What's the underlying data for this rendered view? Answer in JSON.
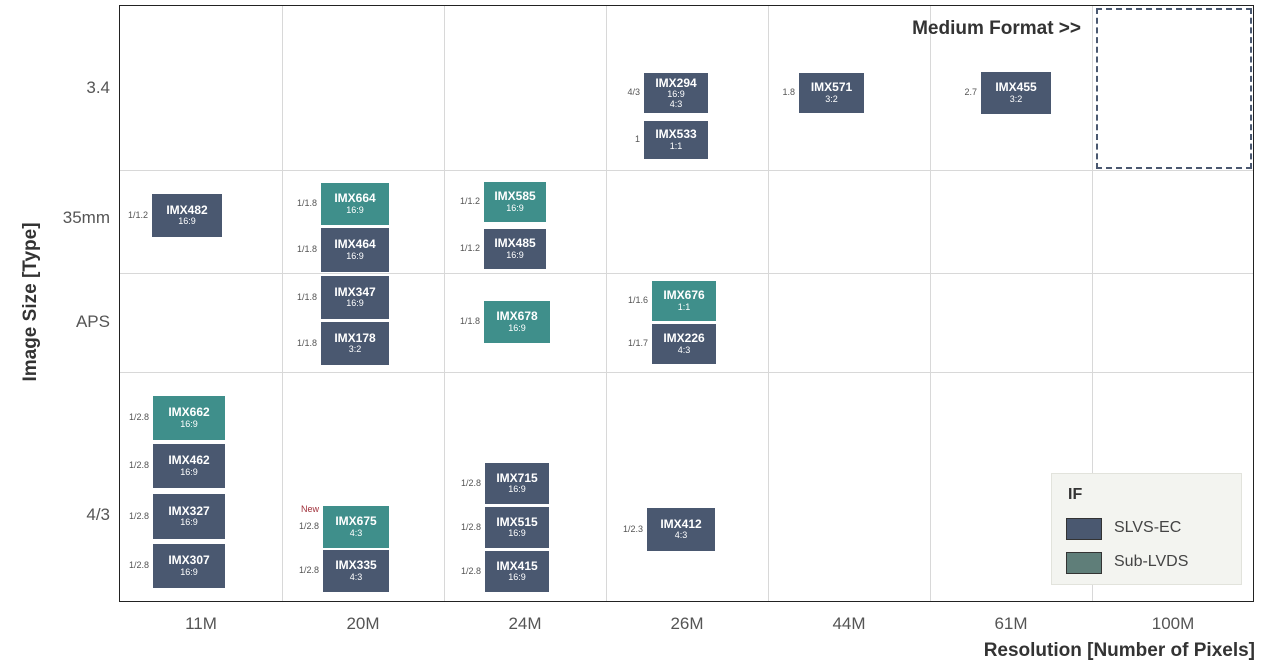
{
  "chart_data": {
    "type": "table",
    "xlabel": "Resolution [Number of Pixels]",
    "ylabel": "Image Size [Type]",
    "x_categories": [
      "11M",
      "20M",
      "24M",
      "26M",
      "44M",
      "61M",
      "100M"
    ],
    "y_categories": [
      "3.4",
      "35mm",
      "APS",
      "4/3"
    ],
    "annotation": "Medium Format >>",
    "legend": {
      "title": "IF",
      "items": [
        {
          "label": "SLVS-EC",
          "color": "#4a5870"
        },
        {
          "label": "Sub-LVDS",
          "color": "#5f7e79"
        }
      ]
    },
    "sensors": [
      {
        "name": "IMX294",
        "aspect_lines": [
          "16:9",
          "4:3"
        ],
        "size": "4/3",
        "if": "SLVS-EC",
        "resolution": "26M",
        "image_size": "3.4"
      },
      {
        "name": "IMX533",
        "aspect_lines": [
          "1:1"
        ],
        "size": "1",
        "if": "SLVS-EC",
        "resolution": "26M",
        "image_size": "3.4"
      },
      {
        "name": "IMX571",
        "aspect_lines": [
          "3:2"
        ],
        "size": "1.8",
        "if": "SLVS-EC",
        "resolution": "44M",
        "image_size": "3.4"
      },
      {
        "name": "IMX455",
        "aspect_lines": [
          "3:2"
        ],
        "size": "2.7",
        "if": "SLVS-EC",
        "resolution": "61M",
        "image_size": "3.4"
      },
      {
        "name": "IMX482",
        "aspect_lines": [
          "16:9"
        ],
        "size": "1/1.2",
        "if": "SLVS-EC",
        "resolution": "11M",
        "image_size": "35mm"
      },
      {
        "name": "IMX664",
        "aspect_lines": [
          "16:9"
        ],
        "size": "1/1.8",
        "if": "Sub-LVDS",
        "resolution": "20M",
        "image_size": "35mm"
      },
      {
        "name": "IMX464",
        "aspect_lines": [
          "16:9"
        ],
        "size": "1/1.8",
        "if": "SLVS-EC",
        "resolution": "20M",
        "image_size": "35mm"
      },
      {
        "name": "IMX585",
        "aspect_lines": [
          "16:9"
        ],
        "size": "1/1.2",
        "if": "Sub-LVDS",
        "resolution": "24M",
        "image_size": "35mm"
      },
      {
        "name": "IMX485",
        "aspect_lines": [
          "16:9"
        ],
        "size": "1/1.2",
        "if": "SLVS-EC",
        "resolution": "24M",
        "image_size": "35mm"
      },
      {
        "name": "IMX347",
        "aspect_lines": [
          "16:9"
        ],
        "size": "1/1.8",
        "if": "SLVS-EC",
        "resolution": "20M",
        "image_size": "APS"
      },
      {
        "name": "IMX178",
        "aspect_lines": [
          "3:2"
        ],
        "size": "1/1.8",
        "if": "SLVS-EC",
        "resolution": "20M",
        "image_size": "APS"
      },
      {
        "name": "IMX678",
        "aspect_lines": [
          "16:9"
        ],
        "size": "1/1.8",
        "if": "Sub-LVDS",
        "resolution": "24M",
        "image_size": "APS"
      },
      {
        "name": "IMX676",
        "aspect_lines": [
          "1:1"
        ],
        "size": "1/1.6",
        "if": "Sub-LVDS",
        "resolution": "26M",
        "image_size": "APS"
      },
      {
        "name": "IMX226",
        "aspect_lines": [
          "4:3"
        ],
        "size": "1/1.7",
        "if": "SLVS-EC",
        "resolution": "26M",
        "image_size": "APS"
      },
      {
        "name": "IMX662",
        "aspect_lines": [
          "16:9"
        ],
        "size": "1/2.8",
        "if": "Sub-LVDS",
        "resolution": "11M",
        "image_size": "4/3"
      },
      {
        "name": "IMX462",
        "aspect_lines": [
          "16:9"
        ],
        "size": "1/2.8",
        "if": "SLVS-EC",
        "resolution": "11M",
        "image_size": "4/3"
      },
      {
        "name": "IMX327",
        "aspect_lines": [
          "16:9"
        ],
        "size": "1/2.8",
        "if": "SLVS-EC",
        "resolution": "11M",
        "image_size": "4/3"
      },
      {
        "name": "IMX307",
        "aspect_lines": [
          "16:9"
        ],
        "size": "1/2.8",
        "if": "SLVS-EC",
        "resolution": "11M",
        "image_size": "4/3"
      },
      {
        "name": "IMX675",
        "aspect_lines": [
          "4:3"
        ],
        "size": "1/2.8",
        "if": "Sub-LVDS",
        "resolution": "20M",
        "image_size": "4/3",
        "new": "New"
      },
      {
        "name": "IMX335",
        "aspect_lines": [
          "4:3"
        ],
        "size": "1/2.8",
        "if": "SLVS-EC",
        "resolution": "20M",
        "image_size": "4/3"
      },
      {
        "name": "IMX715",
        "aspect_lines": [
          "16:9"
        ],
        "size": "1/2.8",
        "if": "SLVS-EC",
        "resolution": "24M",
        "image_size": "4/3"
      },
      {
        "name": "IMX515",
        "aspect_lines": [
          "16:9"
        ],
        "size": "1/2.8",
        "if": "SLVS-EC",
        "resolution": "24M",
        "image_size": "4/3"
      },
      {
        "name": "IMX415",
        "aspect_lines": [
          "16:9"
        ],
        "size": "1/2.8",
        "if": "SLVS-EC",
        "resolution": "24M",
        "image_size": "4/3"
      },
      {
        "name": "IMX412",
        "aspect_lines": [
          "4:3"
        ],
        "size": "1/2.3",
        "if": "SLVS-EC",
        "resolution": "26M",
        "image_size": "4/3"
      }
    ]
  }
}
